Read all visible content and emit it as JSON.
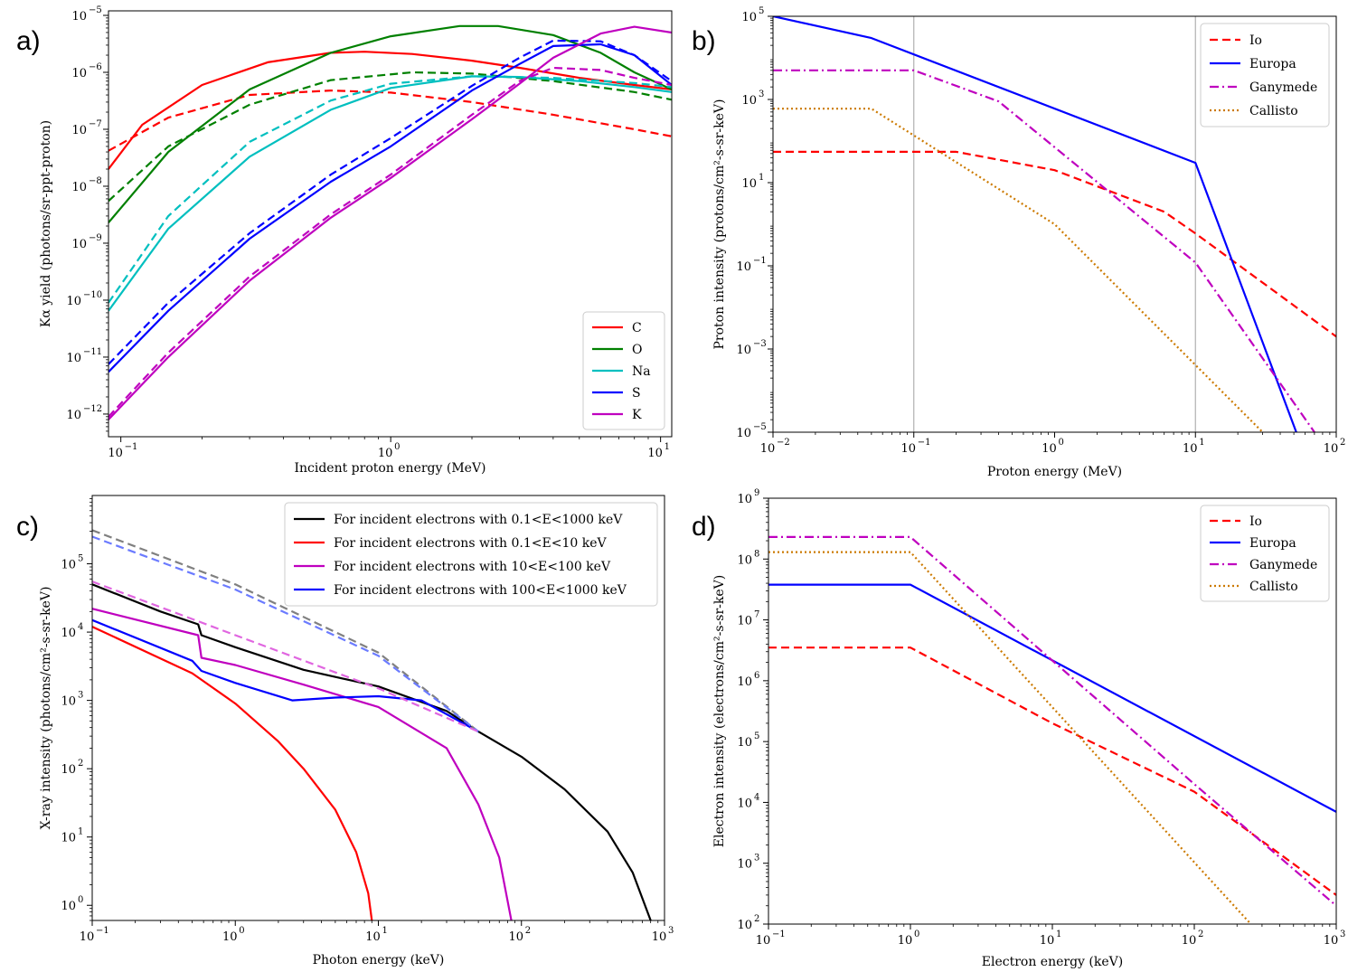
{
  "chart_data": [
    {
      "panel": "a)",
      "type": "line",
      "xlabel": "Incident proton energy (MeV)",
      "ylabel": "Kα yield (photons/sr-ppt-proton)",
      "xscale": "log",
      "yscale": "log",
      "xlim": [
        0.09,
        11
      ],
      "ylim": [
        4e-13,
        1.2e-05
      ],
      "xticks": [
        {
          "base": "10",
          "exp": "−1",
          "v": 0.1
        },
        {
          "base": "10",
          "exp": "0",
          "v": 1
        },
        {
          "base": "10",
          "exp": "1",
          "v": 10
        }
      ],
      "yticks": [
        {
          "base": "10",
          "exp": "−12",
          "v": 1e-12
        },
        {
          "base": "10",
          "exp": "−11",
          "v": 1e-11
        },
        {
          "base": "10",
          "exp": "−10",
          "v": 1e-10
        },
        {
          "base": "10",
          "exp": "−9",
          "v": 1e-09
        },
        {
          "base": "10",
          "exp": "−8",
          "v": 1e-08
        },
        {
          "base": "10",
          "exp": "−7",
          "v": 1e-07
        },
        {
          "base": "10",
          "exp": "−6",
          "v": 1e-06
        },
        {
          "base": "10",
          "exp": "−5",
          "v": 1e-05
        }
      ],
      "legend": {
        "position": "lower-right",
        "entries": [
          {
            "label": "C",
            "color": "#ff0000",
            "dash": "solid"
          },
          {
            "label": "O",
            "color": "#008000",
            "dash": "solid"
          },
          {
            "label": "Na",
            "color": "#00bfbf",
            "dash": "solid"
          },
          {
            "label": "S",
            "color": "#0000ff",
            "dash": "solid"
          },
          {
            "label": "K",
            "color": "#bf00bf",
            "dash": "solid"
          }
        ]
      },
      "series": [
        {
          "name": "C",
          "color": "#ff0000",
          "dash": "solid",
          "x": [
            0.09,
            0.12,
            0.2,
            0.35,
            0.6,
            0.8,
            1.2,
            2,
            3,
            5,
            8,
            11
          ],
          "y": [
            2e-08,
            1.2e-07,
            6e-07,
            1.5e-06,
            2.2e-06,
            2.3e-06,
            2.1e-06,
            1.6e-06,
            1.2e-06,
            8e-07,
            6e-07,
            5e-07
          ]
        },
        {
          "name": "C (dashed)",
          "color": "#ff0000",
          "dash": "dashed",
          "x": [
            0.09,
            0.15,
            0.3,
            0.6,
            1,
            2,
            4,
            8,
            11
          ],
          "y": [
            4.2e-08,
            1.6e-07,
            4e-07,
            4.8e-07,
            4.4e-07,
            3e-07,
            1.8e-07,
            1e-07,
            7.5e-08
          ]
        },
        {
          "name": "O",
          "color": "#008000",
          "dash": "solid",
          "x": [
            0.09,
            0.15,
            0.3,
            0.6,
            1,
            1.8,
            2.5,
            4,
            6,
            8,
            11
          ],
          "y": [
            2.3e-09,
            4e-08,
            5e-07,
            2.2e-06,
            4.3e-06,
            6.5e-06,
            6.5e-06,
            4.5e-06,
            2.2e-06,
            1e-06,
            5e-07
          ]
        },
        {
          "name": "O (dashed)",
          "color": "#008000",
          "dash": "dashed",
          "x": [
            0.09,
            0.15,
            0.3,
            0.6,
            1.2,
            2,
            4,
            8,
            11
          ],
          "y": [
            5.5e-09,
            5e-08,
            2.7e-07,
            7.3e-07,
            1e-06,
            9.5e-07,
            7e-07,
            4.5e-07,
            3.3e-07
          ]
        },
        {
          "name": "Na",
          "color": "#00bfbf",
          "dash": "solid",
          "x": [
            0.09,
            0.15,
            0.3,
            0.6,
            1,
            2,
            3,
            5,
            8,
            11
          ],
          "y": [
            6.5e-11,
            1.8e-09,
            3.3e-08,
            2.2e-07,
            5.3e-07,
            8.5e-07,
            8.3e-07,
            7e-07,
            5.5e-07,
            4.5e-07
          ]
        },
        {
          "name": "Na (dashed)",
          "color": "#00bfbf",
          "dash": "dashed",
          "x": [
            0.09,
            0.15,
            0.3,
            0.6,
            1,
            2,
            4,
            8,
            11
          ],
          "y": [
            9e-11,
            3e-09,
            6e-08,
            3.2e-07,
            6.3e-07,
            8.5e-07,
            8e-07,
            6.5e-07,
            5.5e-07
          ]
        },
        {
          "name": "S",
          "color": "#0000ff",
          "dash": "solid",
          "x": [
            0.09,
            0.15,
            0.3,
            0.6,
            1,
            2,
            3,
            4,
            6,
            8,
            11
          ],
          "y": [
            5.5e-12,
            6.5e-11,
            1.2e-09,
            1.2e-08,
            5e-08,
            4.8e-07,
            1.4e-06,
            2.9e-06,
            3.1e-06,
            2e-06,
            6e-07
          ]
        },
        {
          "name": "S (dashed)",
          "color": "#0000ff",
          "dash": "dashed",
          "x": [
            0.09,
            0.15,
            0.3,
            0.6,
            1,
            2,
            3,
            4,
            6,
            8,
            11
          ],
          "y": [
            7.5e-12,
            9e-11,
            1.5e-09,
            1.6e-08,
            7e-08,
            5.8e-07,
            1.8e-06,
            3.6e-06,
            3.5e-06,
            2e-06,
            7e-07
          ]
        },
        {
          "name": "K",
          "color": "#bf00bf",
          "dash": "solid",
          "x": [
            0.09,
            0.15,
            0.3,
            0.6,
            1,
            2,
            3,
            4,
            6,
            8,
            11
          ],
          "y": [
            8e-13,
            1e-11,
            2.2e-10,
            2.8e-09,
            1.4e-08,
            1.5e-07,
            6.3e-07,
            1.8e-06,
            4.8e-06,
            6.3e-06,
            5e-06
          ]
        },
        {
          "name": "K (dashed)",
          "color": "#bf00bf",
          "dash": "dashed",
          "x": [
            0.09,
            0.15,
            0.3,
            0.6,
            1,
            2,
            3,
            4,
            6,
            8,
            11
          ],
          "y": [
            9e-13,
            1.2e-11,
            2.6e-10,
            3.2e-09,
            1.6e-08,
            1.8e-07,
            7e-07,
            1.2e-06,
            1.1e-06,
            8e-07,
            6e-07
          ]
        }
      ]
    },
    {
      "panel": "b)",
      "type": "line",
      "xlabel": "Proton energy (MeV)",
      "ylabel": "Proton intensity (protons/cm²-s-sr-keV)",
      "xscale": "log",
      "yscale": "log",
      "xlim": [
        0.01,
        100
      ],
      "ylim": [
        1e-05,
        100000.0
      ],
      "vlines": [
        0.1,
        10
      ],
      "xticks": [
        {
          "base": "10",
          "exp": "−2",
          "v": 0.01
        },
        {
          "base": "10",
          "exp": "−1",
          "v": 0.1
        },
        {
          "base": "10",
          "exp": "0",
          "v": 1
        },
        {
          "base": "10",
          "exp": "1",
          "v": 10
        },
        {
          "base": "10",
          "exp": "2",
          "v": 100
        }
      ],
      "yticks": [
        {
          "base": "10",
          "exp": "−5",
          "v": 1e-05
        },
        {
          "base": "10",
          "exp": "−3",
          "v": 0.001
        },
        {
          "base": "10",
          "exp": "−1",
          "v": 0.1
        },
        {
          "base": "10",
          "exp": "1",
          "v": 10
        },
        {
          "base": "10",
          "exp": "3",
          "v": 1000
        },
        {
          "base": "10",
          "exp": "5",
          "v": 100000.0
        }
      ],
      "legend": {
        "position": "top-right",
        "entries": [
          {
            "label": "Io",
            "color": "#ff0000",
            "dash": "dashed"
          },
          {
            "label": "Europa",
            "color": "#0000ff",
            "dash": "solid"
          },
          {
            "label": "Ganymede",
            "color": "#bf00bf",
            "dash": "dashdot"
          },
          {
            "label": "Callisto",
            "color": "#cc7a00",
            "dash": "dotted"
          }
        ]
      },
      "series": [
        {
          "name": "Io",
          "color": "#ff0000",
          "dash": "dashed",
          "x": [
            0.01,
            0.2,
            1,
            6,
            10,
            100
          ],
          "y": [
            55,
            55,
            20,
            2,
            0.6,
            0.002
          ]
        },
        {
          "name": "Europa",
          "color": "#0000ff",
          "dash": "solid",
          "x": [
            0.01,
            0.05,
            10,
            52
          ],
          "y": [
            100000.0,
            30000.0,
            30,
            1e-05
          ]
        },
        {
          "name": "Ganymede",
          "color": "#bf00bf",
          "dash": "dashdot",
          "x": [
            0.01,
            0.1,
            0.4,
            10,
            70
          ],
          "y": [
            5000,
            5000,
            900,
            0.12,
            1e-05
          ]
        },
        {
          "name": "Callisto",
          "color": "#cc7a00",
          "dash": "dotted",
          "x": [
            0.01,
            0.05,
            1,
            30
          ],
          "y": [
            600,
            600,
            1,
            1e-05
          ]
        }
      ]
    },
    {
      "panel": "c)",
      "type": "line",
      "xlabel": "Photon energy (keV)",
      "ylabel": "X-ray intensity (photons/cm²-s-sr-keV)",
      "xscale": "log",
      "yscale": "log",
      "xlim": [
        0.1,
        1000
      ],
      "ylim": [
        0.6,
        1000000.0
      ],
      "xticks": [
        {
          "base": "10",
          "exp": "−1",
          "v": 0.1
        },
        {
          "base": "10",
          "exp": "0",
          "v": 1
        },
        {
          "base": "10",
          "exp": "1",
          "v": 10
        },
        {
          "base": "10",
          "exp": "2",
          "v": 100
        },
        {
          "base": "10",
          "exp": "3",
          "v": 1000
        }
      ],
      "yticks": [
        {
          "base": "10",
          "exp": "0",
          "v": 1
        },
        {
          "base": "10",
          "exp": "1",
          "v": 10
        },
        {
          "base": "10",
          "exp": "2",
          "v": 100
        },
        {
          "base": "10",
          "exp": "3",
          "v": 1000
        },
        {
          "base": "10",
          "exp": "4",
          "v": 10000.0
        },
        {
          "base": "10",
          "exp": "5",
          "v": 100000.0
        }
      ],
      "legend": {
        "position": "top-right",
        "entries": [
          {
            "label": "For incident electrons with 0.1<E<1000 keV",
            "color": "#000000",
            "dash": "solid"
          },
          {
            "label": "For incident electrons with 0.1<E<10 keV",
            "color": "#ff0000",
            "dash": "solid"
          },
          {
            "label": "For incident electrons with 10<E<100 keV",
            "color": "#bf00bf",
            "dash": "solid"
          },
          {
            "label": "For incident electrons with 100<E<1000 keV",
            "color": "#0000ff",
            "dash": "solid"
          }
        ]
      },
      "series": [
        {
          "name": "0.1<E<1000 keV",
          "color": "#000000",
          "dash": "solid",
          "x": [
            0.1,
            0.3,
            0.55,
            0.58,
            1,
            3,
            10,
            30,
            50,
            100,
            200,
            400,
            600,
            800
          ],
          "y": [
            50000,
            20000,
            13000,
            9000,
            6000,
            2800,
            1600,
            700,
            350,
            150,
            50,
            12,
            3,
            0.6
          ]
        },
        {
          "name": "0.1<E<10 keV",
          "color": "#ff0000",
          "dash": "solid",
          "x": [
            0.1,
            0.5,
            1,
            2,
            3,
            5,
            7,
            8.5,
            9
          ],
          "y": [
            12000,
            2500,
            900,
            250,
            100,
            25,
            6,
            1.5,
            0.6
          ]
        },
        {
          "name": "10<E<100 keV",
          "color": "#bf00bf",
          "dash": "solid",
          "x": [
            0.1,
            0.55,
            0.58,
            1,
            3,
            10,
            30,
            50,
            70,
            85
          ],
          "y": [
            22000,
            9000,
            4200,
            3300,
            1700,
            800,
            200,
            30,
            5,
            0.6
          ]
        },
        {
          "name": "100<E<1000 keV",
          "color": "#0000ff",
          "dash": "solid",
          "x": [
            0.1,
            0.5,
            0.58,
            1,
            2.5,
            5,
            10,
            20,
            40,
            50
          ],
          "y": [
            15000,
            3800,
            2700,
            1800,
            1000,
            1100,
            1150,
            1000,
            450,
            350
          ]
        },
        {
          "name": "grey dashed",
          "color": "#808080",
          "dash": "dashed",
          "x": [
            0.1,
            1,
            10,
            50
          ],
          "y": [
            310000,
            50000,
            5000,
            350
          ]
        },
        {
          "name": "blue dashed",
          "color": "#6b7bff",
          "dash": "dashed",
          "x": [
            0.1,
            1,
            10,
            50
          ],
          "y": [
            250000,
            42000,
            4500,
            350
          ]
        },
        {
          "name": "magenta dashed",
          "color": "#e066e0",
          "dash": "dashed",
          "x": [
            0.1,
            1,
            10,
            50
          ],
          "y": [
            55000,
            9000,
            1500,
            350
          ]
        }
      ]
    },
    {
      "panel": "d)",
      "type": "line",
      "xlabel": "Electron energy (keV)",
      "ylabel": "Electron intensity (electrons/cm²-s-sr-keV)",
      "xscale": "log",
      "yscale": "log",
      "xlim": [
        0.1,
        1000
      ],
      "ylim": [
        100,
        1000000000.0
      ],
      "xticks": [
        {
          "base": "10",
          "exp": "−1",
          "v": 0.1
        },
        {
          "base": "10",
          "exp": "0",
          "v": 1
        },
        {
          "base": "10",
          "exp": "1",
          "v": 10
        },
        {
          "base": "10",
          "exp": "2",
          "v": 100
        },
        {
          "base": "10",
          "exp": "3",
          "v": 1000
        }
      ],
      "yticks": [
        {
          "base": "10",
          "exp": "2",
          "v": 100
        },
        {
          "base": "10",
          "exp": "3",
          "v": 1000
        },
        {
          "base": "10",
          "exp": "4",
          "v": 10000.0
        },
        {
          "base": "10",
          "exp": "5",
          "v": 100000.0
        },
        {
          "base": "10",
          "exp": "6",
          "v": 1000000.0
        },
        {
          "base": "10",
          "exp": "7",
          "v": 10000000.0
        },
        {
          "base": "10",
          "exp": "8",
          "v": 100000000.0
        },
        {
          "base": "10",
          "exp": "9",
          "v": 1000000000.0
        }
      ],
      "legend": {
        "position": "top-right",
        "entries": [
          {
            "label": "Io",
            "color": "#ff0000",
            "dash": "dashed"
          },
          {
            "label": "Europa",
            "color": "#0000ff",
            "dash": "solid"
          },
          {
            "label": "Ganymede",
            "color": "#bf00bf",
            "dash": "dashdot"
          },
          {
            "label": "Callisto",
            "color": "#cc7a00",
            "dash": "dotted"
          }
        ]
      },
      "series": [
        {
          "name": "Io",
          "color": "#ff0000",
          "dash": "dashed",
          "x": [
            0.1,
            1,
            10,
            100,
            1000
          ],
          "y": [
            3500000,
            3500000,
            200000,
            15000,
            300
          ]
        },
        {
          "name": "Europa",
          "color": "#0000ff",
          "dash": "solid",
          "x": [
            0.1,
            1,
            1000
          ],
          "y": [
            38000000,
            38000000,
            7000
          ]
        },
        {
          "name": "Ganymede",
          "color": "#bf00bf",
          "dash": "dashdot",
          "x": [
            0.1,
            1,
            100,
            1000
          ],
          "y": [
            230000000,
            230000000,
            20000,
            200
          ]
        },
        {
          "name": "Callisto",
          "color": "#cc7a00",
          "dash": "dotted",
          "x": [
            0.1,
            1,
            250
          ],
          "y": [
            130000000,
            130000000,
            100
          ]
        }
      ]
    }
  ]
}
